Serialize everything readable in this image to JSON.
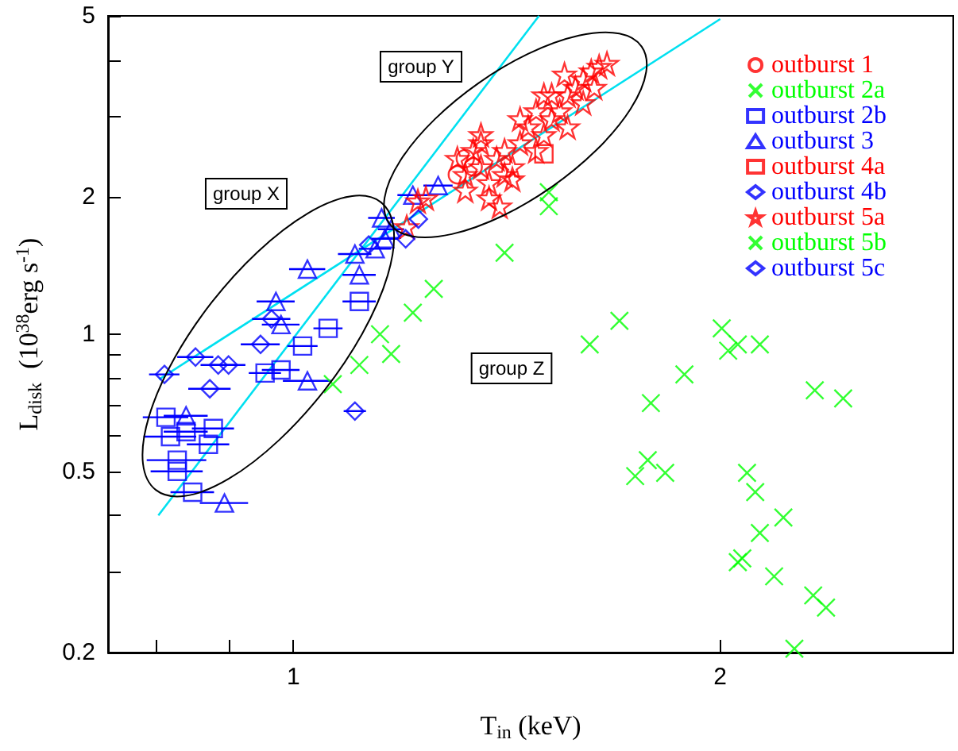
{
  "chart_data": {
    "type": "scatter",
    "xlabel": "T$_{in}$ (keV)",
    "ylabel": "L$_{disk}$  (10$^{38}$erg s$^{-1}$)",
    "log": "xy",
    "grid": false,
    "legend": "top right",
    "xlim": [
      0.74,
      2.92
    ],
    "ylim": [
      0.2,
      5
    ],
    "xticks": [
      {
        "value": 0.8,
        "label": null
      },
      {
        "value": 0.9,
        "label": null
      },
      1,
      2
    ],
    "yticks": [
      0.2,
      {
        "value": 0.3,
        "label": null
      },
      {
        "value": 0.4,
        "label": null
      },
      0.5,
      {
        "value": 0.6,
        "label": null
      },
      {
        "value": 0.7,
        "label": null
      },
      {
        "value": 0.8,
        "label": null
      },
      {
        "value": 0.9,
        "label": null
      },
      1,
      2,
      {
        "value": 3,
        "label": null
      },
      {
        "value": 4,
        "label": null
      },
      5
    ],
    "annotations": [
      "group X",
      "group Y",
      "group Z"
    ],
    "series": [
      {
        "name": "outburst 1",
        "color": "#ff0000",
        "marker": "circle",
        "x": [
          1.322,
          1.339,
          1.305
        ],
        "values": [
          2.43,
          2.33,
          2.24
        ]
      },
      {
        "name": "outburst 2a",
        "color": "#00ff00",
        "marker": "cross",
        "x": [
          1.066,
          1.113,
          1.151,
          1.172,
          1.214,
          1.256,
          1.698,
          1.618,
          2.005,
          2.058,
          2.026,
          2.133,
          1.887,
          1.787,
          2.332,
          2.442,
          1.778,
          1.742,
          1.829,
          2.089,
          2.117,
          2.216,
          2.133,
          2.073,
          2.058,
          2.183,
          2.326,
          2.375,
          2.256
        ],
        "values": [
          0.777,
          0.856,
          1.0,
          0.905,
          1.115,
          1.258,
          1.07,
          0.95,
          1.03,
          0.95,
          0.92,
          0.95,
          0.816,
          0.706,
          0.753,
          0.723,
          0.529,
          0.488,
          0.496,
          0.496,
          0.45,
          0.396,
          0.366,
          0.322,
          0.316,
          0.294,
          0.267,
          0.251,
          0.204
        ]
      },
      {
        "name": "outburst 2b",
        "color": "#0000ff",
        "marker": "square",
        "x": [
          0.813,
          0.819,
          0.84,
          0.878,
          0.871,
          0.828,
          0.828,
          0.849,
          0.955,
          0.98,
          1.015,
          1.058,
          1.113
        ],
        "values": [
          0.657,
          0.596,
          0.611,
          0.621,
          0.573,
          0.529,
          0.5,
          0.45,
          0.822,
          0.835,
          0.942,
          1.03,
          1.18
        ],
        "xerrors": [
          0.03,
          0.035,
          0.03,
          0.03,
          0.03,
          0.04,
          0.035,
          0.03,
          0.025,
          0.03,
          0.025,
          0.025,
          0.03
        ]
      },
      {
        "name": "outburst 3",
        "color": "#0000ff",
        "marker": "triangle",
        "x": [
          1.265,
          1.214,
          1.154,
          1.142,
          1.105,
          1.113,
          1.023,
          0.972,
          1.023,
          0.894,
          0.84,
          0.98,
          1.172,
          1.16
        ],
        "values": [
          2.12,
          2.02,
          1.8,
          1.54,
          1.5,
          1.35,
          1.39,
          1.18,
          0.79,
          0.426,
          0.662,
          1.05,
          1.7,
          1.62
        ],
        "xerrors": [
          0.03,
          0.03,
          0.025,
          0.03,
          0.03,
          0.03,
          0.03,
          0.03,
          0.04,
          0.035,
          0.03,
          0.03,
          0.025,
          0.025
        ]
      },
      {
        "name": "outburst 4a",
        "color": "#ff0000",
        "marker": "square",
        "x": [
          1.502
        ],
        "values": [
          2.49
        ]
      },
      {
        "name": "outburst 4b",
        "color": "#0000ff",
        "marker": "diamond",
        "x": [
          0.811,
          0.853,
          0.885,
          0.9,
          0.873,
          0.948,
          1.105,
          0.965
        ],
        "values": [
          0.816,
          0.891,
          0.856,
          0.856,
          0.759,
          0.95,
          0.678,
          1.08
        ],
        "xerrors": [
          0.02,
          0.025,
          0.025,
          0.025,
          0.03,
          0.03,
          0.02,
          0.03
        ]
      },
      {
        "name": "outburst 5a",
        "color": "#ff0000",
        "marker": "star",
        "x": [
          1.305,
          1.322,
          1.339,
          1.356,
          1.374,
          1.356,
          1.391,
          1.409,
          1.427,
          1.445,
          1.464,
          1.483,
          1.502,
          1.521,
          1.541,
          1.561,
          1.581,
          1.601,
          1.622,
          1.643,
          1.664,
          1.521,
          1.483,
          1.445,
          1.409,
          1.374,
          1.398,
          1.322,
          1.356,
          1.561,
          1.601,
          1.63,
          1.224,
          1.202,
          1.24,
          1.427,
          1.502,
          1.553
        ],
        "values": [
          2.43,
          2.24,
          2.53,
          2.33,
          2.15,
          2.63,
          2.43,
          2.53,
          2.33,
          2.63,
          2.85,
          2.53,
          2.74,
          2.97,
          3.09,
          3.35,
          3.48,
          3.63,
          3.78,
          3.87,
          3.93,
          3.35,
          3.09,
          2.97,
          2.24,
          1.99,
          1.91,
          2.07,
          2.74,
          2.85,
          3.22,
          3.48,
          1.96,
          1.72,
          1.99,
          2.19,
          3.35,
          3.72
        ]
      },
      {
        "name": "outburst 5b",
        "color": "#00ff00",
        "marker": "cross",
        "x": [
          1.514,
          1.514,
          1.409
        ],
        "values": [
          2.05,
          1.91,
          1.51
        ]
      },
      {
        "name": "outburst 5c",
        "color": "#0000ff",
        "marker": "diamond",
        "x": [
          1.2,
          1.225,
          1.13
        ],
        "values": [
          1.62,
          1.79,
          1.57
        ]
      },
      {
        "type": "line",
        "color": "#00e0f0",
        "x": [
          0.803,
          1.49
        ],
        "values": [
          0.4,
          5
        ]
      },
      {
        "type": "line",
        "color": "#00e0f0",
        "x": [
          0.804,
          2.0
        ],
        "values": [
          0.796,
          4.92
        ]
      }
    ]
  }
}
